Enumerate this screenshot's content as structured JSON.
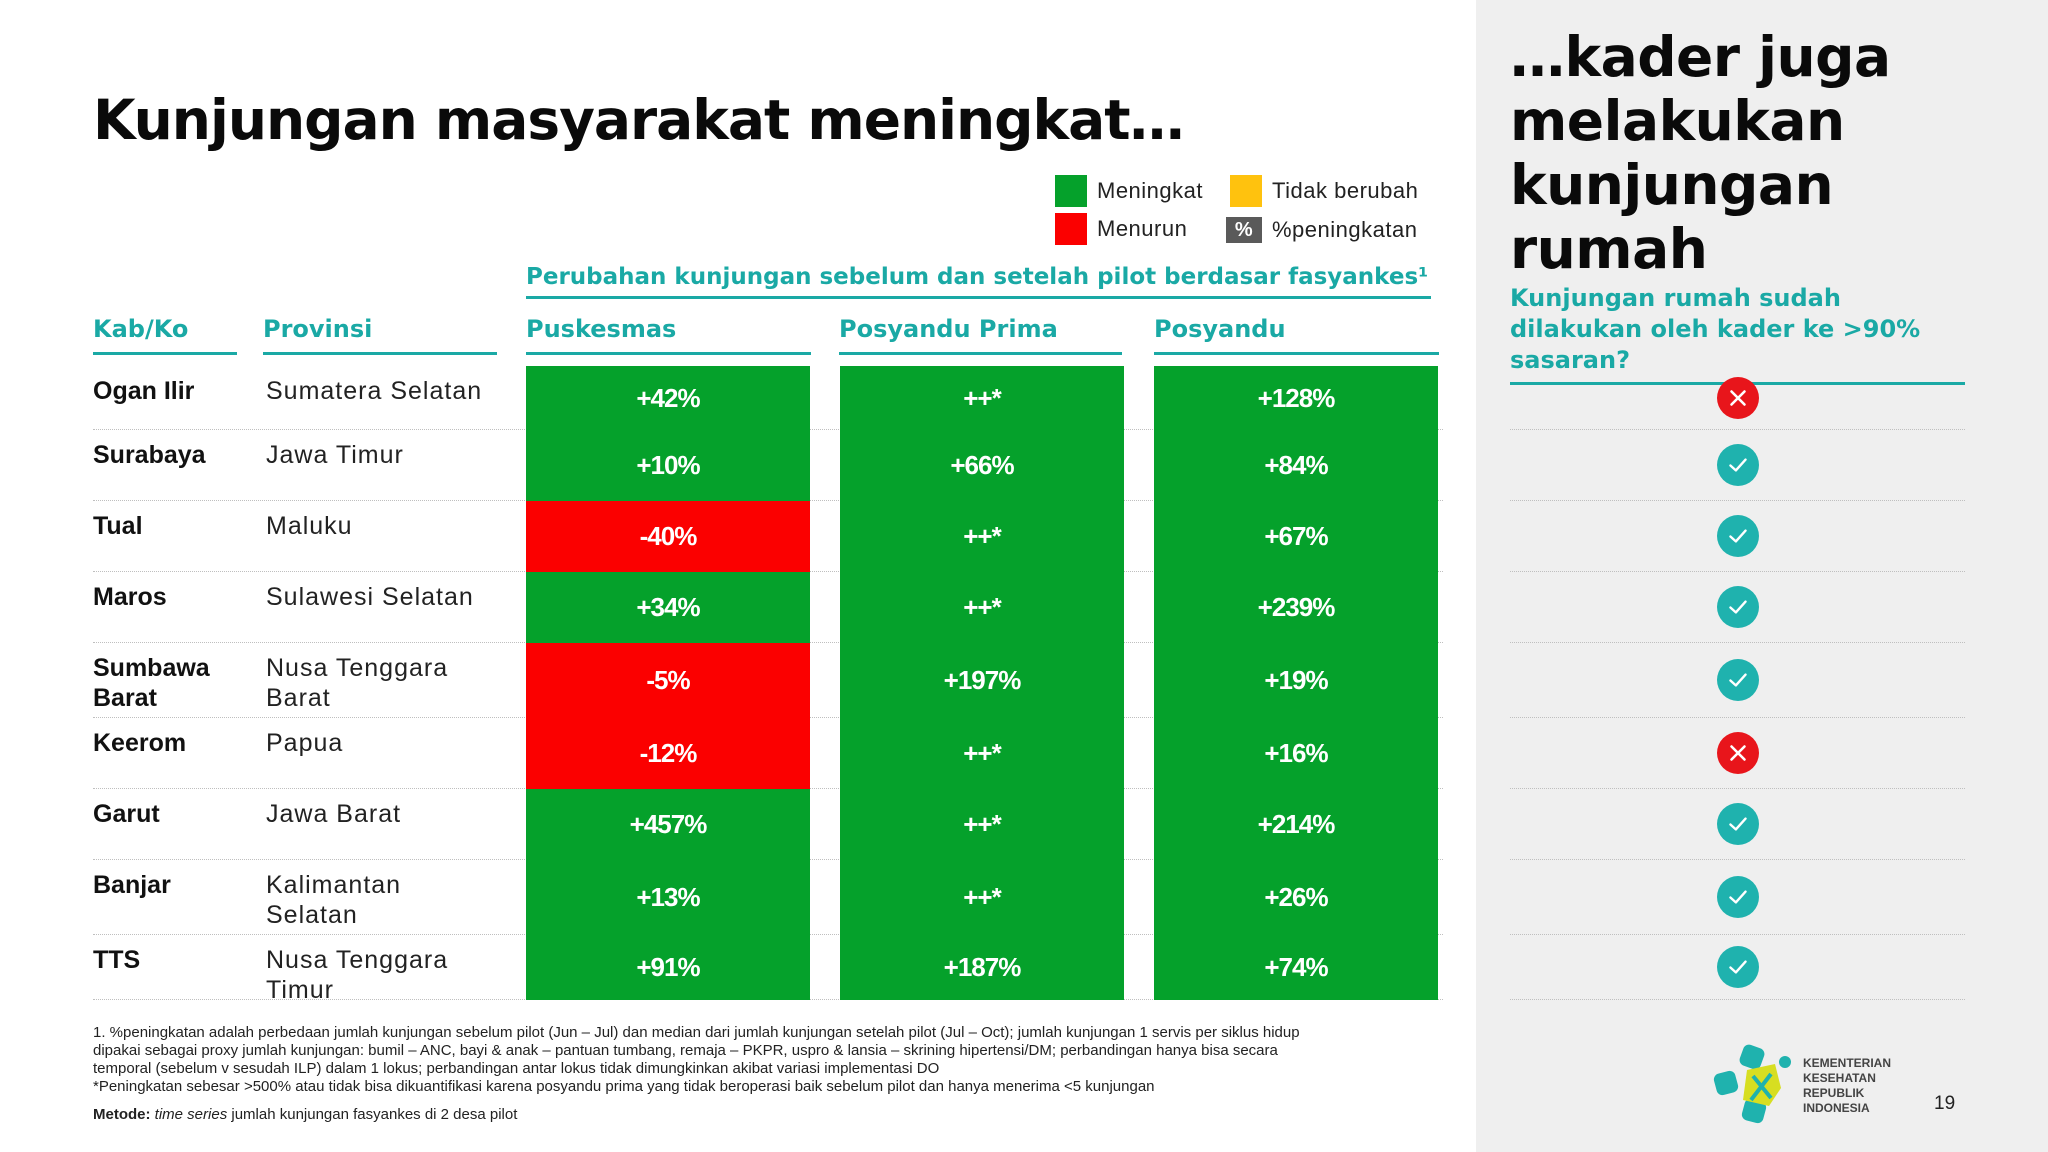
{
  "title": "Kunjungan masyarakat meningkat…",
  "legend": {
    "increase": "Meningkat",
    "decrease": "Menurun",
    "unchanged": "Tidak berubah",
    "pct_symbol": "%",
    "pct_label": "%peningkatan",
    "colors": {
      "increase": "#05a12b",
      "decrease": "#fb0000",
      "unchanged": "#ffc20e",
      "pct": "#5a5a5a"
    }
  },
  "group_title": "Perubahan kunjungan sebelum dan setelah pilot berdasar fasyankes¹",
  "columns": {
    "kab": "Kab/Ko",
    "prov": "Provinsi",
    "puskesmas": "Puskesmas",
    "posyandu_prima": "Posyandu Prima",
    "posyandu": "Posyandu"
  },
  "rows": [
    {
      "kab": "Ogan Ilir",
      "prov": "Sumatera Selatan",
      "puskesmas": "+42%",
      "puskesmas_status": "increase",
      "posyandu_prima": "++*",
      "posyandu": "+128%",
      "home_visit": "no"
    },
    {
      "kab": "Surabaya",
      "prov": "Jawa Timur",
      "puskesmas": "+10%",
      "puskesmas_status": "increase",
      "posyandu_prima": "+66%",
      "posyandu": "+84%",
      "home_visit": "yes"
    },
    {
      "kab": "Tual",
      "prov": "Maluku",
      "puskesmas": "-40%",
      "puskesmas_status": "decrease",
      "posyandu_prima": "++*",
      "posyandu": "+67%",
      "home_visit": "yes"
    },
    {
      "kab": "Maros",
      "prov": "Sulawesi Selatan",
      "puskesmas": "+34%",
      "puskesmas_status": "increase",
      "posyandu_prima": "++*",
      "posyandu": "+239%",
      "home_visit": "yes"
    },
    {
      "kab": "Sumbawa Barat",
      "prov": "Nusa Tenggara Barat",
      "puskesmas": "-5%",
      "puskesmas_status": "decrease",
      "posyandu_prima": "+197%",
      "posyandu": "+19%",
      "home_visit": "yes"
    },
    {
      "kab": "Keerom",
      "prov": "Papua",
      "puskesmas": "-12%",
      "puskesmas_status": "decrease",
      "posyandu_prima": "++*",
      "posyandu": "+16%",
      "home_visit": "no"
    },
    {
      "kab": "Garut",
      "prov": "Jawa Barat",
      "puskesmas": "+457%",
      "puskesmas_status": "increase",
      "posyandu_prima": "++*",
      "posyandu": "+214%",
      "home_visit": "yes"
    },
    {
      "kab": "Banjar",
      "prov": "Kalimantan Selatan",
      "puskesmas": "+13%",
      "puskesmas_status": "increase",
      "posyandu_prima": "++*",
      "posyandu": "+26%",
      "home_visit": "yes"
    },
    {
      "kab": "TTS",
      "prov": "Nusa Tenggara Timur",
      "puskesmas": "+91%",
      "puskesmas_status": "increase",
      "posyandu_prima": "+187%",
      "posyandu": "+74%",
      "home_visit": "yes"
    }
  ],
  "right_panel": {
    "title": "…kader juga melakukan kunjungan rumah",
    "subtitle": "Kunjungan rumah sudah dilakukan oleh kader ke >90% sasaran?",
    "icons": {
      "yes": "check-circle-icon",
      "no": "x-circle-icon"
    }
  },
  "footnotes": {
    "line1": "1. %peningkatan adalah perbedaan jumlah kunjungan sebelum pilot (Jun – Jul) dan median dari jumlah kunjungan setelah pilot (Jul – Oct); jumlah kunjungan 1 servis per siklus hidup",
    "line2": "dipakai sebagai proxy jumlah kunjungan: bumil – ANC, bayi & anak – pantuan tumbang, remaja – PKPR, uspro & lansia – skrining hipertensi/DM; perbandingan hanya bisa secara",
    "line3": "temporal (sebelum v sesudah ILP) dalam 1 lokus; perbandingan antar lokus tidak dimungkinkan akibat variasi implementasi DO",
    "line4": "*Peningkatan sebesar >500% atau tidak bisa dikuantifikasi karena posyandu prima yang tidak beroperasi baik sebelum pilot dan hanya menerima <5 kunjungan",
    "method_label": "Metode:",
    "method_italic": "time series",
    "method_text": " jumlah kunjungan fasyankes di 2 desa pilot"
  },
  "logo": {
    "line1": "KEMENTERIAN",
    "line2": "KESEHATAN",
    "line3": "REPUBLIK",
    "line4": "INDONESIA"
  },
  "page_number": "19"
}
